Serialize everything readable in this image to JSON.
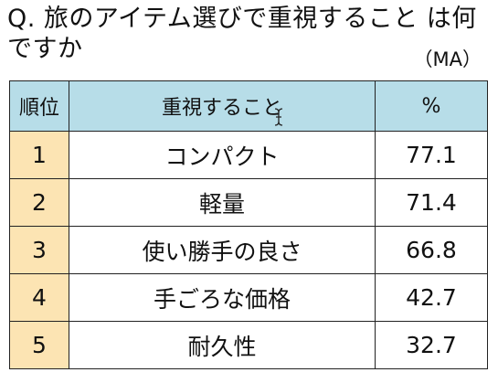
{
  "question": "Q.  旅のアイテム選びで重視すること は何ですか",
  "note": "（MA）",
  "table": {
    "headers": {
      "rank": "順位",
      "item": "重視すること",
      "percent": "%"
    },
    "rows": [
      {
        "rank": "1",
        "item": "コンパクト",
        "percent": "77.1"
      },
      {
        "rank": "2",
        "item": "軽量",
        "percent": "71.4"
      },
      {
        "rank": "3",
        "item": "使い勝手の良さ",
        "percent": "66.8"
      },
      {
        "rank": "4",
        "item": "手ごろな価格",
        "percent": "42.7"
      },
      {
        "rank": "5",
        "item": "耐久性",
        "percent": "32.7"
      }
    ]
  },
  "colors": {
    "header_bg": "#b7dde8",
    "rank_bg": "#fce4b3"
  },
  "icons": [
    "text-cursor-icon"
  ]
}
